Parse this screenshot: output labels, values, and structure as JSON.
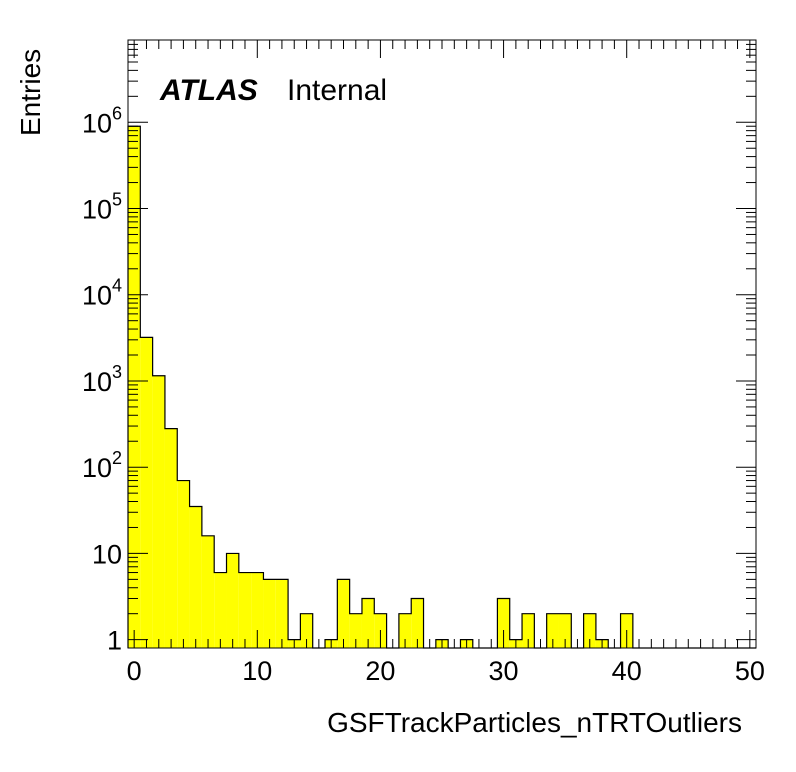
{
  "chart_data": {
    "type": "bar",
    "histogram": true,
    "xlabel": "GSFTrackParticles_nTRTOutliers",
    "ylabel": "Entries",
    "annotation": {
      "bold": "ATLAS",
      "normal": "Internal"
    },
    "xlim": [
      -0.5,
      50.5
    ],
    "ylim": [
      0.8,
      9000000
    ],
    "yscale": "log",
    "bin_width": 1,
    "x_ticks": [
      0,
      10,
      20,
      30,
      40,
      50
    ],
    "y_ticks": [
      {
        "value": 1,
        "base": "1",
        "exp": ""
      },
      {
        "value": 10,
        "base": "10",
        "exp": ""
      },
      {
        "value": 100,
        "base": "10",
        "exp": "2"
      },
      {
        "value": 1000,
        "base": "10",
        "exp": "3"
      },
      {
        "value": 10000,
        "base": "10",
        "exp": "4"
      },
      {
        "value": 100000,
        "base": "10",
        "exp": "5"
      },
      {
        "value": 1000000,
        "base": "10",
        "exp": "6"
      }
    ],
    "bin_starts": [
      -0.5,
      0.5,
      1.5,
      2.5,
      3.5,
      4.5,
      5.5,
      6.5,
      7.5,
      8.5,
      9.5,
      10.5,
      11.5,
      12.5,
      13.5,
      14.5,
      15.5,
      16.5,
      17.5,
      18.5,
      19.5,
      20.5,
      21.5,
      22.5,
      23.5,
      24.5,
      25.5,
      26.5,
      27.5,
      28.5,
      29.5,
      30.5,
      31.5,
      32.5,
      33.5,
      34.5,
      35.5,
      36.5,
      37.5,
      38.5,
      39.5,
      40.5,
      41.5,
      42.5,
      43.5,
      44.5,
      45.5,
      46.5,
      47.5,
      48.5,
      49.5
    ],
    "values": [
      900000,
      3200,
      1150,
      280,
      70,
      35,
      16,
      6,
      10,
      6,
      6,
      5,
      5,
      1,
      2,
      0,
      1,
      5,
      2,
      3,
      2,
      0,
      2,
      3,
      0,
      1,
      0,
      1,
      0,
      0,
      3,
      1,
      2,
      0,
      2,
      2,
      0,
      2,
      1,
      0,
      2,
      0,
      0,
      0,
      0,
      0,
      0,
      0,
      0,
      0,
      0
    ],
    "fill_color": "#ffff00",
    "line_color": "#000000",
    "grid": false,
    "legend": "none"
  }
}
